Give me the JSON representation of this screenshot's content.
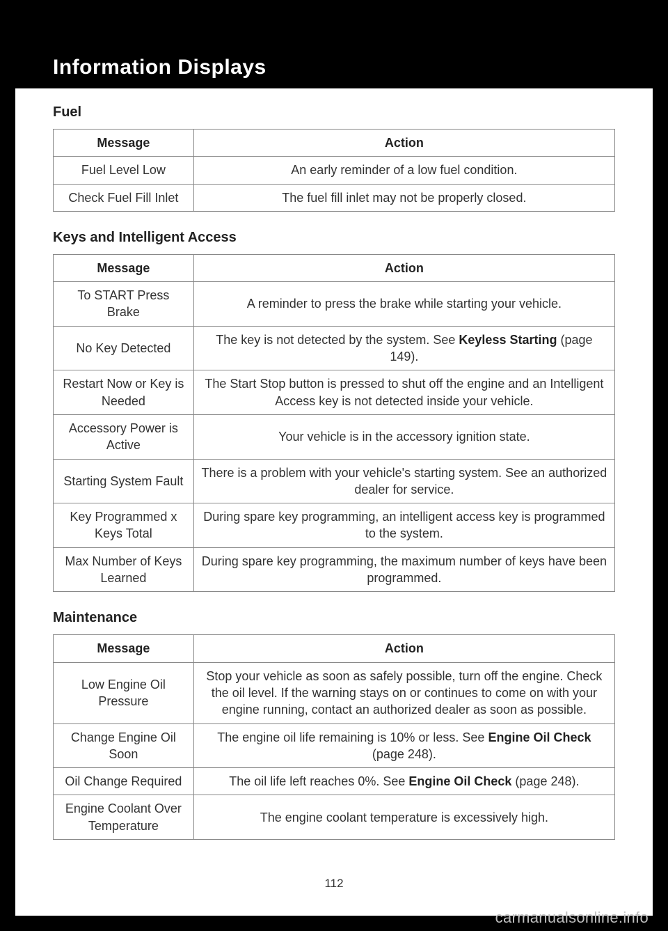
{
  "header": {
    "title": "Information Displays"
  },
  "pageNumber": "112",
  "watermark": "carmanualsonline.info",
  "tableHeaders": {
    "message": "Message",
    "action": "Action"
  },
  "sections": {
    "fuel": {
      "heading": "Fuel",
      "rows": [
        {
          "message": "Fuel Level Low",
          "action": "An early reminder of a low fuel condition."
        },
        {
          "message": "Check Fuel Fill Inlet",
          "action": "The fuel fill inlet may not be properly closed."
        }
      ]
    },
    "keys": {
      "heading": "Keys and Intelligent Access",
      "rows": [
        {
          "message": "To START Press Brake",
          "action": "A reminder to press the brake while starting your vehicle."
        },
        {
          "message": "No Key Detected",
          "action_pre": "The key is not detected by the system.  See ",
          "action_bold": "Keyless Starting",
          "action_post": " (page 149)."
        },
        {
          "message": "Restart Now or Key is Needed",
          "action": "The Start Stop button is pressed to shut off the engine and an Intelligent Access key is not detected inside your vehicle."
        },
        {
          "message": "Accessory Power is Active",
          "action": "Your vehicle is in the accessory ignition state."
        },
        {
          "message": "Starting System Fault",
          "action": "There is a problem with your vehicle's starting system. See an authorized dealer for service."
        },
        {
          "message": "Key Programmed x Keys Total",
          "action": "During spare key programming, an intelligent access key is programmed to the system."
        },
        {
          "message": "Max Number of Keys Learned",
          "action": "During spare key programming, the maximum number of keys have been programmed."
        }
      ]
    },
    "maintenance": {
      "heading": "Maintenance",
      "rows": [
        {
          "message": "Low Engine Oil Pressure",
          "action": "Stop your vehicle as soon as safely possible, turn off the engine. Check the oil level. If the warning stays on or continues to come on with your engine running, contact an authorized dealer as soon as possible."
        },
        {
          "message": "Change Engine Oil Soon",
          "action_pre": "The engine oil life remaining is 10% or less.  See ",
          "action_bold": "Engine Oil Check",
          "action_post": " (page 248)."
        },
        {
          "message": "Oil Change Required",
          "action_pre": "The oil life left reaches 0%. See ",
          "action_bold": "Engine Oil Check",
          "action_post": " (page 248)."
        },
        {
          "message": "Engine Coolant Over Temperature",
          "action": "The engine coolant temperature is excessively high."
        }
      ]
    }
  }
}
